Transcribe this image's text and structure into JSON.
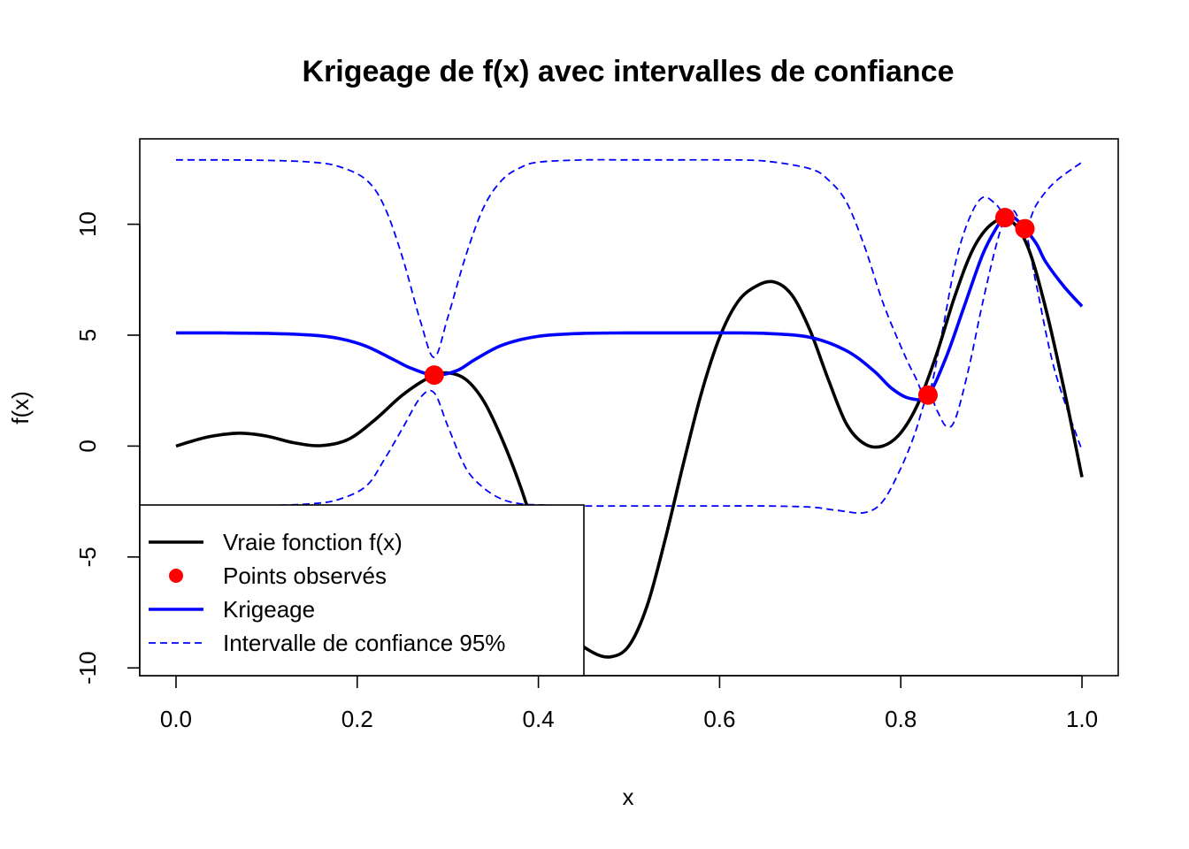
{
  "chart_data": {
    "type": "line",
    "title": "Krigeage de f(x) avec intervalles de confiance",
    "xlabel": "x",
    "ylabel": "f(x)",
    "xlim": [
      -0.04,
      1.04
    ],
    "ylim": [
      -10.35,
      13.85
    ],
    "x_ticks": [
      0.0,
      0.2,
      0.4,
      0.6,
      0.8,
      1.0
    ],
    "x_tick_labels": [
      "0.0",
      "0.2",
      "0.4",
      "0.6",
      "0.8",
      "1.0"
    ],
    "y_ticks": [
      -10,
      -5,
      0,
      5,
      10
    ],
    "y_tick_labels": [
      "-10",
      "-5",
      "0",
      "5",
      "10"
    ],
    "grid": false,
    "legend_position": "bottom-left",
    "series": [
      {
        "name": "Vraie fonction f(x)",
        "kind": "solid-line",
        "color": "#000000",
        "x": [
          0.0,
          0.02,
          0.04,
          0.07,
          0.1,
          0.13,
          0.16,
          0.19,
          0.22,
          0.25,
          0.28,
          0.3,
          0.32,
          0.34,
          0.36,
          0.38,
          0.4,
          0.42,
          0.44,
          0.46,
          0.48,
          0.5,
          0.52,
          0.54,
          0.56,
          0.58,
          0.6,
          0.62,
          0.64,
          0.66,
          0.68,
          0.7,
          0.72,
          0.74,
          0.76,
          0.78,
          0.8,
          0.82,
          0.84,
          0.86,
          0.88,
          0.9,
          0.92,
          0.94,
          0.96,
          0.98,
          1.0
        ],
        "y": [
          0.0,
          0.25,
          0.45,
          0.58,
          0.45,
          0.15,
          0.02,
          0.3,
          1.2,
          2.3,
          3.1,
          3.3,
          3.0,
          2.0,
          0.3,
          -1.8,
          -4.3,
          -6.8,
          -8.6,
          -9.3,
          -9.5,
          -9.0,
          -7.2,
          -4.2,
          -0.8,
          2.4,
          4.9,
          6.5,
          7.2,
          7.4,
          6.8,
          5.2,
          3.0,
          1.0,
          0.1,
          0.0,
          0.6,
          2.0,
          4.2,
          6.8,
          8.9,
          10.0,
          10.2,
          9.0,
          6.2,
          2.6,
          -1.4
        ]
      },
      {
        "name": "Points observés",
        "kind": "points",
        "color": "#ff0000",
        "x": [
          0.285,
          0.83,
          0.915,
          0.937
        ],
        "y": [
          3.2,
          2.3,
          10.3,
          9.8
        ]
      },
      {
        "name": "Krigeage",
        "kind": "solid-line",
        "color": "#0000ff",
        "x": [
          0.0,
          0.05,
          0.1,
          0.15,
          0.18,
          0.21,
          0.24,
          0.26,
          0.285,
          0.31,
          0.33,
          0.36,
          0.4,
          0.45,
          0.5,
          0.55,
          0.6,
          0.65,
          0.7,
          0.74,
          0.77,
          0.79,
          0.81,
          0.83,
          0.85,
          0.87,
          0.89,
          0.905,
          0.915,
          0.925,
          0.937,
          0.95,
          0.96,
          0.98,
          1.0
        ],
        "y": [
          5.1,
          5.1,
          5.08,
          5.0,
          4.85,
          4.5,
          3.9,
          3.5,
          3.2,
          3.4,
          3.9,
          4.55,
          4.95,
          5.08,
          5.1,
          5.1,
          5.1,
          5.08,
          4.9,
          4.3,
          3.4,
          2.6,
          2.15,
          2.3,
          4.0,
          6.3,
          8.6,
          9.8,
          10.3,
          10.3,
          9.8,
          9.1,
          8.3,
          7.2,
          6.3
        ]
      },
      {
        "name": "Intervalle de confiance 95%",
        "kind": "dashed-line",
        "color": "#0000ff",
        "x": [
          0.0,
          0.05,
          0.1,
          0.15,
          0.18,
          0.21,
          0.23,
          0.25,
          0.27,
          0.285,
          0.3,
          0.32,
          0.34,
          0.36,
          0.38,
          0.4,
          0.45,
          0.5,
          0.55,
          0.6,
          0.65,
          0.7,
          0.72,
          0.74,
          0.76,
          0.78,
          0.8,
          0.815,
          0.83,
          0.845,
          0.86,
          0.875,
          0.89,
          0.905,
          0.915,
          0.925,
          0.937,
          0.95,
          0.97,
          1.0
        ],
        "y": [
          12.9,
          12.9,
          12.88,
          12.8,
          12.6,
          12.0,
          10.8,
          8.5,
          5.6,
          4.0,
          5.8,
          8.6,
          10.8,
          12.0,
          12.55,
          12.8,
          12.9,
          12.9,
          12.9,
          12.9,
          12.85,
          12.5,
          12.0,
          11.0,
          9.0,
          6.5,
          4.5,
          3.2,
          2.3,
          5.0,
          8.2,
          10.2,
          11.2,
          10.9,
          10.4,
          10.6,
          9.8,
          10.9,
          11.9,
          12.8
        ]
      },
      {
        "name": "Intervalle de confiance 95% (borne inférieure)",
        "kind": "dashed-line",
        "color": "#0000ff",
        "x": [
          0.0,
          0.05,
          0.1,
          0.15,
          0.18,
          0.21,
          0.23,
          0.25,
          0.27,
          0.285,
          0.3,
          0.32,
          0.34,
          0.36,
          0.38,
          0.4,
          0.45,
          0.5,
          0.55,
          0.6,
          0.65,
          0.7,
          0.73,
          0.76,
          0.78,
          0.8,
          0.815,
          0.83,
          0.84,
          0.85,
          0.86,
          0.875,
          0.89,
          0.905,
          0.915,
          0.925,
          0.937,
          0.95,
          0.97,
          1.0
        ],
        "y": [
          -2.7,
          -2.7,
          -2.68,
          -2.6,
          -2.4,
          -1.8,
          -0.6,
          0.8,
          2.2,
          2.4,
          0.9,
          -1.0,
          -1.9,
          -2.4,
          -2.6,
          -2.65,
          -2.7,
          -2.7,
          -2.7,
          -2.7,
          -2.7,
          -2.75,
          -2.9,
          -3.0,
          -2.5,
          -1.0,
          0.5,
          2.3,
          1.6,
          0.9,
          1.2,
          3.5,
          6.4,
          9.0,
          10.2,
          10.0,
          9.8,
          7.2,
          3.4,
          -0.2
        ]
      }
    ],
    "legend": {
      "entries": [
        {
          "label": "Vraie fonction f(x)",
          "symbol": "line",
          "color": "#000000"
        },
        {
          "label": "Points observés",
          "symbol": "point",
          "color": "#ff0000"
        },
        {
          "label": "Krigeage",
          "symbol": "line",
          "color": "#0000ff"
        },
        {
          "label": "Intervalle de confiance 95%",
          "symbol": "dashed",
          "color": "#0000ff"
        }
      ]
    }
  }
}
